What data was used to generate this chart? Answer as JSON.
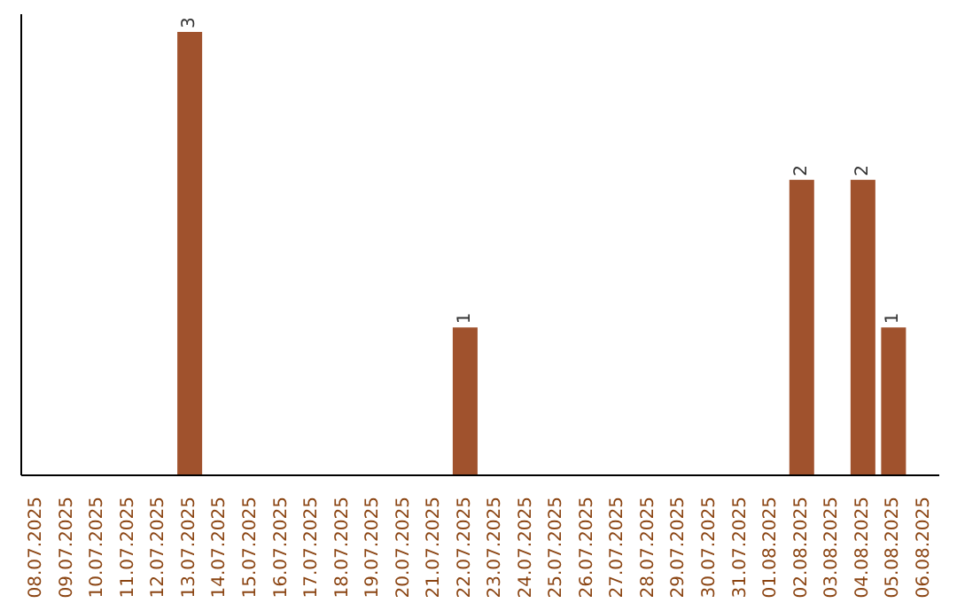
{
  "chart_data": {
    "type": "bar",
    "categories": [
      "08.07.2025",
      "09.07.2025",
      "10.07.2025",
      "11.07.2025",
      "12.07.2025",
      "13.07.2025",
      "14.07.2025",
      "15.07.2025",
      "16.07.2025",
      "17.07.2025",
      "18.07.2025",
      "19.07.2025",
      "20.07.2025",
      "21.07.2025",
      "22.07.2025",
      "23.07.2025",
      "24.07.2025",
      "25.07.2025",
      "26.07.2025",
      "27.07.2025",
      "28.07.2025",
      "29.07.2025",
      "30.07.2025",
      "31.07.2025",
      "01.08.2025",
      "02.08.2025",
      "03.08.2025",
      "04.08.2025",
      "05.08.2025",
      "06.08.2025"
    ],
    "values": [
      0,
      0,
      0,
      0,
      0,
      3,
      0,
      0,
      0,
      0,
      0,
      0,
      0,
      0,
      1,
      0,
      0,
      0,
      0,
      0,
      0,
      0,
      0,
      0,
      0,
      2,
      0,
      2,
      1,
      0
    ],
    "value_labels": [
      null,
      null,
      null,
      null,
      null,
      "3",
      null,
      null,
      null,
      null,
      null,
      null,
      null,
      null,
      "1",
      null,
      null,
      null,
      null,
      null,
      null,
      null,
      null,
      null,
      null,
      "2",
      null,
      "2",
      "1",
      null
    ],
    "color": "#a0522d",
    "grid": false,
    "legend": false,
    "tick_labels": "x"
  }
}
